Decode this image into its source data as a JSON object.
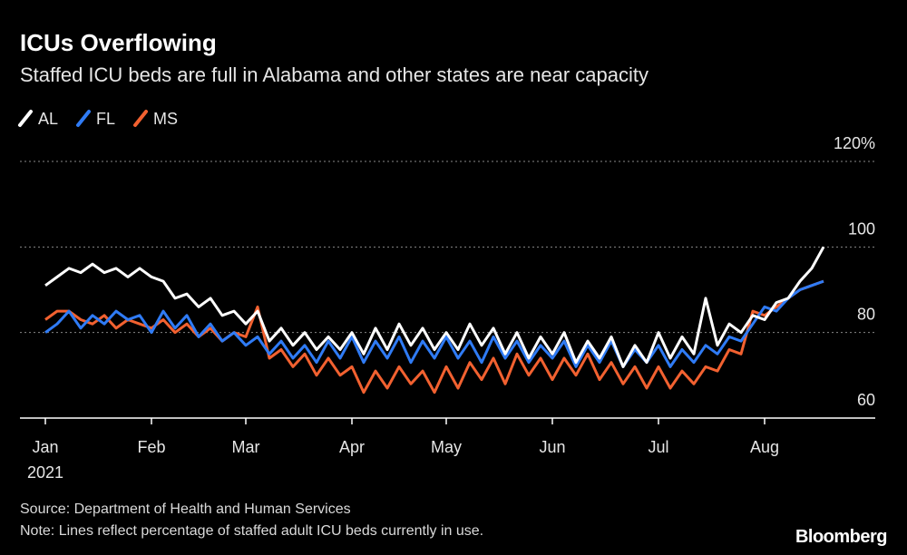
{
  "chart_data": {
    "type": "line",
    "title": "ICUs Overflowing",
    "subtitle": "Staffed ICU beds are full in Alabama and other states are near capacity",
    "categories": [
      "Jan",
      null,
      null,
      null,
      null,
      null,
      null,
      null,
      null,
      "Feb",
      null,
      null,
      null,
      null,
      null,
      null,
      null,
      "Mar",
      null,
      null,
      null,
      null,
      null,
      null,
      null,
      null,
      "Apr",
      null,
      null,
      null,
      null,
      null,
      null,
      null,
      "May",
      null,
      null,
      null,
      null,
      null,
      null,
      null,
      null,
      "Jun",
      null,
      null,
      null,
      null,
      null,
      null,
      null,
      null,
      "Jul",
      null,
      null,
      null,
      null,
      null,
      null,
      null,
      null,
      "Aug",
      null,
      null,
      null,
      null,
      null
    ],
    "year_label": "2021",
    "series": [
      {
        "name": "AL",
        "color": "#ffffff",
        "values": [
          91,
          93,
          95,
          94,
          96,
          94,
          95,
          93,
          95,
          93,
          92,
          88,
          89,
          86,
          88,
          84,
          85,
          82,
          85,
          78,
          81,
          77,
          80,
          76,
          79,
          76,
          80,
          75,
          81,
          76,
          82,
          77,
          81,
          76,
          80,
          76,
          82,
          77,
          81,
          75,
          80,
          74,
          79,
          75,
          80,
          73,
          78,
          74,
          79,
          72,
          77,
          73,
          80,
          74,
          79,
          75,
          88,
          77,
          82,
          80,
          84,
          83,
          87,
          88,
          92,
          95,
          100
        ]
      },
      {
        "name": "FL",
        "color": "#2f7bf5",
        "values": [
          80,
          82,
          85,
          81,
          84,
          82,
          85,
          83,
          84,
          80,
          85,
          81,
          84,
          79,
          82,
          78,
          80,
          77,
          79,
          75,
          78,
          74,
          77,
          73,
          78,
          74,
          79,
          73,
          78,
          74,
          79,
          73,
          78,
          74,
          79,
          74,
          78,
          73,
          79,
          74,
          78,
          73,
          77,
          74,
          78,
          72,
          77,
          73,
          78,
          72,
          76,
          73,
          77,
          72,
          76,
          73,
          77,
          75,
          79,
          78,
          82,
          86,
          85,
          88,
          90,
          91,
          92
        ]
      },
      {
        "name": "MS",
        "color": "#f26130",
        "values": [
          83,
          85,
          85,
          83,
          82,
          84,
          81,
          83,
          82,
          81,
          83,
          80,
          82,
          79,
          81,
          78,
          80,
          79,
          86,
          74,
          76,
          72,
          75,
          70,
          74,
          70,
          72,
          66,
          71,
          67,
          72,
          68,
          71,
          66,
          72,
          67,
          73,
          69,
          74,
          68,
          75,
          70,
          74,
          69,
          74,
          70,
          75,
          69,
          73,
          68,
          72,
          67,
          72,
          67,
          71,
          68,
          72,
          71,
          76,
          75,
          85,
          84,
          86,
          88,
          90,
          91,
          92
        ]
      }
    ],
    "ylim": [
      60,
      120
    ],
    "yticks": [
      60,
      80,
      100,
      {
        "value": 120,
        "label": "120%"
      }
    ],
    "grid": true,
    "legend": "top-left",
    "source": "Source: Department of Health and Human Services",
    "note": "Note: Lines reflect percentage of staffed adult ICU beds currently in use.",
    "brand": "Bloomberg"
  }
}
